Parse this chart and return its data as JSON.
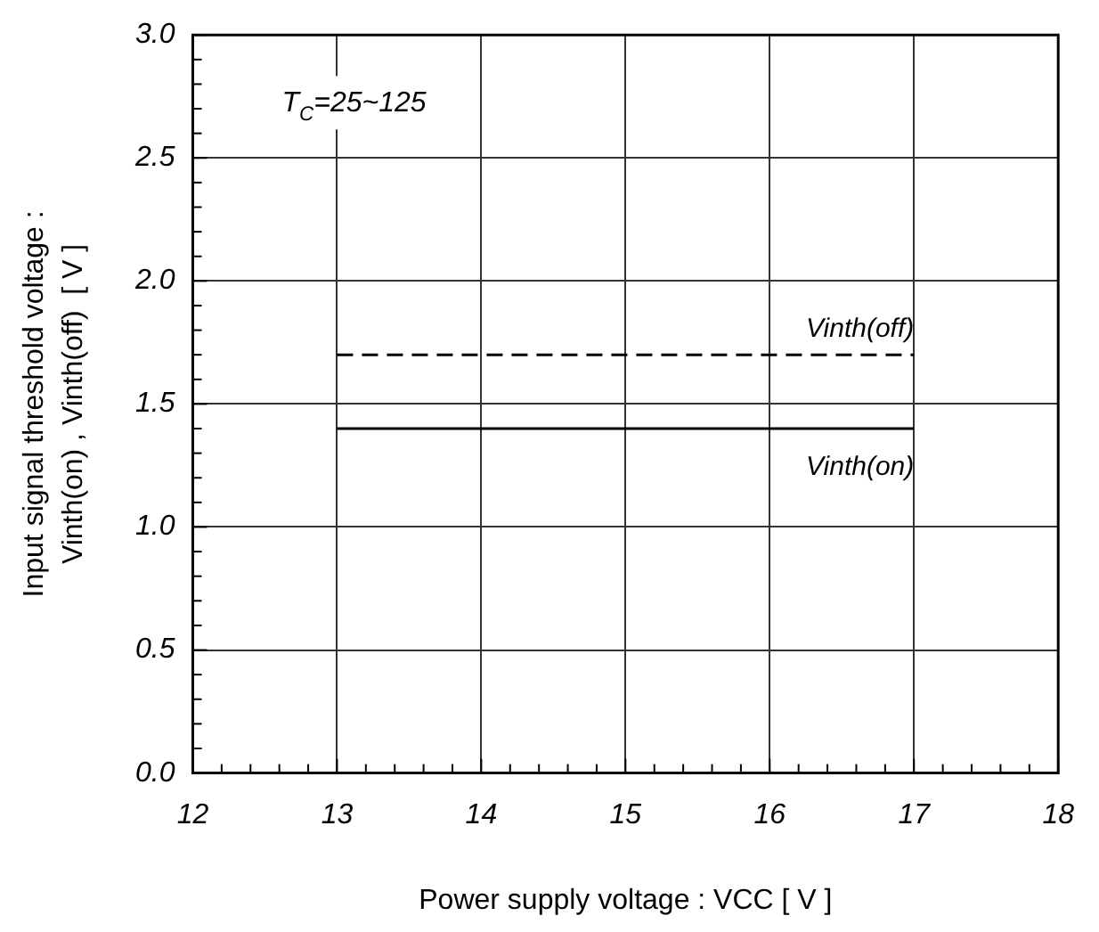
{
  "chart_data": {
    "type": "line",
    "xlabel": "Power supply voltage : VCC [ V ]",
    "ylabel": "Input signal threshold voltage :\nVinth(on) , Vinth(off)  [ V ]",
    "x": [
      13,
      17
    ],
    "series": [
      {
        "name": "Vinth(off)",
        "color": "#000000",
        "values": [
          1.7,
          1.7
        ],
        "line_style": "dashed"
      },
      {
        "name": "Vinth(on)",
        "color": "#000000",
        "values": [
          1.4,
          1.4
        ],
        "line_style": "solid"
      }
    ],
    "xlim": [
      12,
      18
    ],
    "xticks": [
      12,
      {
        "value": 12.2,
        "label": null
      },
      {
        "value": 12.4,
        "label": null
      },
      {
        "value": 12.6,
        "label": null
      },
      {
        "value": 12.8,
        "label": null
      },
      13,
      {
        "value": 13.2,
        "label": null
      },
      {
        "value": 13.4,
        "label": null
      },
      {
        "value": 13.6,
        "label": null
      },
      {
        "value": 13.8,
        "label": null
      },
      14,
      {
        "value": 14.2,
        "label": null
      },
      {
        "value": 14.4,
        "label": null
      },
      {
        "value": 14.6,
        "label": null
      },
      {
        "value": 14.8,
        "label": null
      },
      15,
      {
        "value": 15.2,
        "label": null
      },
      {
        "value": 15.4,
        "label": null
      },
      {
        "value": 15.6,
        "label": null
      },
      {
        "value": 15.8,
        "label": null
      },
      16,
      {
        "value": 16.2,
        "label": null
      },
      {
        "value": 16.4,
        "label": null
      },
      {
        "value": 16.6,
        "label": null
      },
      {
        "value": 16.8,
        "label": null
      },
      17,
      {
        "value": 17.2,
        "label": null
      },
      {
        "value": 17.4,
        "label": null
      },
      {
        "value": 17.6,
        "label": null
      },
      {
        "value": 17.8,
        "label": null
      },
      18
    ],
    "ylim": [
      0,
      3
    ],
    "yticks": [
      {
        "value": 0,
        "label": "0.0"
      },
      {
        "value": 0.1,
        "label": null
      },
      {
        "value": 0.2,
        "label": null
      },
      {
        "value": 0.3,
        "label": null
      },
      {
        "value": 0.4,
        "label": null
      },
      0.5,
      {
        "value": 0.6,
        "label": null
      },
      {
        "value": 0.7,
        "label": null
      },
      {
        "value": 0.8,
        "label": null
      },
      {
        "value": 0.9,
        "label": null
      },
      {
        "value": 1,
        "label": "1.0"
      },
      {
        "value": 1.1,
        "label": null
      },
      {
        "value": 1.2,
        "label": null
      },
      {
        "value": 1.3,
        "label": null
      },
      {
        "value": 1.4,
        "label": null
      },
      1.5,
      {
        "value": 1.6,
        "label": null
      },
      {
        "value": 1.7,
        "label": null
      },
      {
        "value": 1.8,
        "label": null
      },
      {
        "value": 1.9,
        "label": null
      },
      {
        "value": 2,
        "label": "2.0"
      },
      {
        "value": 2.1,
        "label": null
      },
      {
        "value": 2.2,
        "label": null
      },
      {
        "value": 2.3,
        "label": null
      },
      {
        "value": 2.4,
        "label": null
      },
      2.5,
      {
        "value": 2.6,
        "label": null
      },
      {
        "value": 2.7,
        "label": null
      },
      {
        "value": 2.8,
        "label": null
      },
      {
        "value": 2.9,
        "label": null
      },
      {
        "value": 3,
        "label": "3.0"
      }
    ],
    "grid": true,
    "legend": false,
    "marker": "none",
    "annotations": [
      "T$_{C}$=25~125"
    ]
  }
}
